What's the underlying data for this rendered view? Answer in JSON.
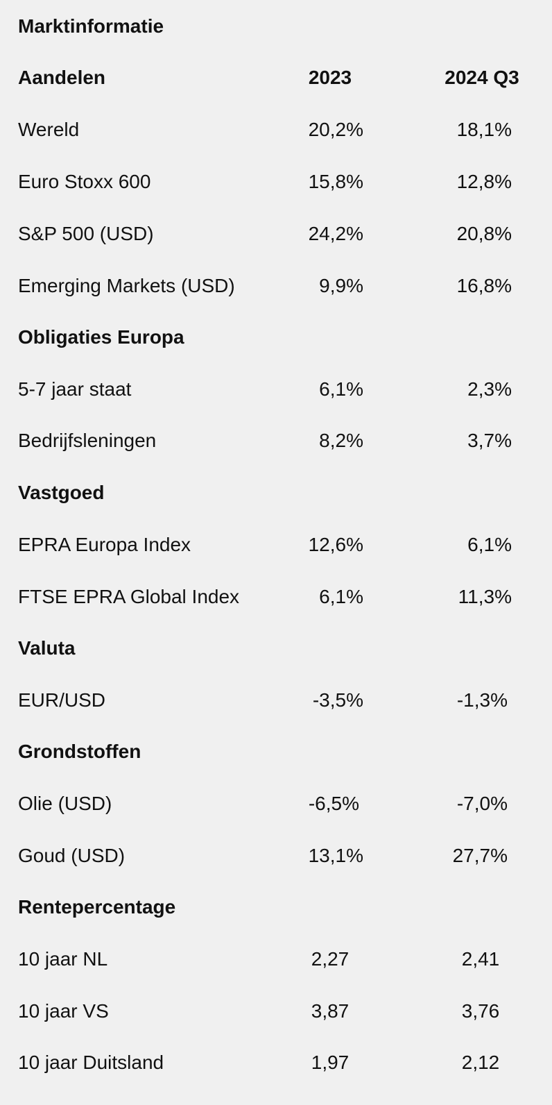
{
  "title": "Marktinformatie",
  "header": {
    "label": "Aandelen",
    "col1": "2023",
    "col2": "2024 Q3"
  },
  "aandelen": [
    {
      "label": "Wereld",
      "v2023": "20,2%",
      "v2024": "18,1%"
    },
    {
      "label": "Euro Stoxx 600",
      "v2023": "15,8%",
      "v2024": "12,8%"
    },
    {
      "label": "S&P 500 (USD)",
      "v2023": "24,2%",
      "v2024": "20,8%"
    },
    {
      "label": "Emerging Markets (USD)",
      "v2023": "9,9%",
      "v2024": "16,8%"
    }
  ],
  "obligaties": {
    "heading": "Obligaties Europa",
    "rows": [
      {
        "label": "5-7 jaar staat",
        "v2023": "6,1%",
        "v2024": "2,3%"
      },
      {
        "label": "Bedrijfsleningen",
        "v2023": "8,2%",
        "v2024": "3,7%"
      }
    ]
  },
  "vastgoed": {
    "heading": "Vastgoed",
    "rows": [
      {
        "label": "EPRA Europa Index",
        "v2023": "12,6%",
        "v2024": "6,1%"
      },
      {
        "label": "FTSE EPRA Global Index",
        "v2023": "6,1%",
        "v2024": "11,3%"
      }
    ]
  },
  "valuta": {
    "heading": "Valuta",
    "rows": [
      {
        "label": "EUR/USD",
        "v2023": "-3,5%",
        "v2024": "-1,3%"
      }
    ]
  },
  "grondstoffen": {
    "heading": "Grondstoffen",
    "rows": [
      {
        "label": "Olie (USD)",
        "v2023": "-6,5%",
        "v2024": "-7,0%"
      },
      {
        "label": "Goud (USD)",
        "v2023": "13,1%",
        "v2024": "27,7%"
      }
    ]
  },
  "rente": {
    "heading": "Rentepercentage",
    "rows": [
      {
        "label": "10 jaar NL",
        "v2023": "2,27",
        "v2024": "2,41"
      },
      {
        "label": "10 jaar VS",
        "v2023": "3,87",
        "v2024": "3,76"
      },
      {
        "label": "10 jaar Duitsland",
        "v2023": "1,97",
        "v2024": "2,12"
      }
    ]
  }
}
